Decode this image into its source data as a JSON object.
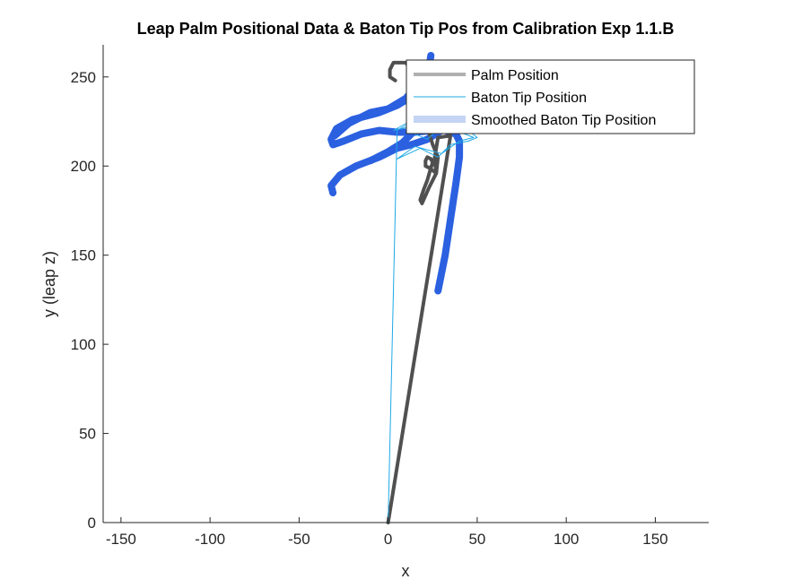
{
  "chart_data": {
    "type": "line",
    "title": "Leap Palm Positional Data & Baton Tip Pos from Calibration Exp 1.1.B",
    "xlabel": "x",
    "ylabel": "y (leap z)",
    "xlim": [
      -160,
      180
    ],
    "ylim": [
      0,
      268
    ],
    "xticks": [
      -150,
      -100,
      -50,
      0,
      50,
      100,
      150
    ],
    "yticks": [
      0,
      50,
      100,
      150,
      200,
      250
    ],
    "grid": false,
    "legend_position": "top-right",
    "colors": {
      "palm": "#505050",
      "baton_tip": "#1ea8e6",
      "smoothed": "#2b60e0",
      "legend_palm": "#b0b0b0",
      "legend_smoothed": "#c4d4f4"
    },
    "series": [
      {
        "name": "Palm Position",
        "style": "thick-gray",
        "x": [
          0,
          35,
          28,
          26,
          27,
          23,
          21,
          21,
          22,
          24,
          25,
          24,
          22,
          20,
          18,
          19,
          23,
          27,
          28,
          25,
          22,
          18,
          15,
          13,
          10,
          3,
          1,
          1,
          4
        ],
        "y": [
          0,
          217,
          216,
          204,
          196,
          199,
          200,
          203,
          205,
          204,
          202,
          199,
          192,
          187,
          181,
          179,
          188,
          196,
          205,
          212,
          222,
          230,
          240,
          253,
          258,
          258,
          254,
          250,
          248
        ]
      },
      {
        "name": "Baton Tip Position",
        "style": "thin-cyan",
        "x": [
          0,
          5,
          10,
          15,
          22,
          30,
          38,
          45,
          50,
          45,
          35,
          28,
          18,
          5,
          15,
          30,
          40,
          48,
          38,
          25,
          12,
          3,
          12,
          28
        ],
        "y": [
          0,
          220,
          223,
          218,
          215,
          222,
          228,
          220,
          216,
          214,
          212,
          205,
          210,
          204,
          211,
          207,
          214,
          216,
          220,
          224,
          225,
          220,
          222,
          230
        ]
      },
      {
        "name": "Smoothed Baton Tip Position",
        "style": "thick-blue",
        "segments": [
          {
            "x": [
              28,
              32,
              35,
              38,
              40,
              40,
              38,
              32,
              25,
              15,
              5,
              -5,
              -15,
              -25,
              -31,
              -32,
              -29,
              -20,
              -5,
              5,
              15,
              22,
              24
            ],
            "y": [
              130,
              150,
              170,
              190,
              205,
              214,
              218,
              220,
              220,
              219,
              219,
              220,
              218,
              214,
              212,
              215,
              221,
              226,
              230,
              234,
              240,
              249,
              262
            ]
          },
          {
            "x": [
              -31,
              -32,
              -27,
              -18,
              -5,
              5,
              13,
              22,
              30
            ],
            "y": [
              185,
              189,
              195,
              200,
              205,
              210,
              212,
              215,
              220
            ]
          },
          {
            "x": [
              -30,
              -22,
              -10,
              0,
              10,
              15
            ],
            "y": [
              217,
              224,
              230,
              232,
              238,
              244
            ]
          },
          {
            "x": [
              -10,
              0,
              8,
              15,
              20
            ],
            "y": [
              203,
              208,
              213,
              220,
              225
            ]
          }
        ]
      }
    ]
  }
}
